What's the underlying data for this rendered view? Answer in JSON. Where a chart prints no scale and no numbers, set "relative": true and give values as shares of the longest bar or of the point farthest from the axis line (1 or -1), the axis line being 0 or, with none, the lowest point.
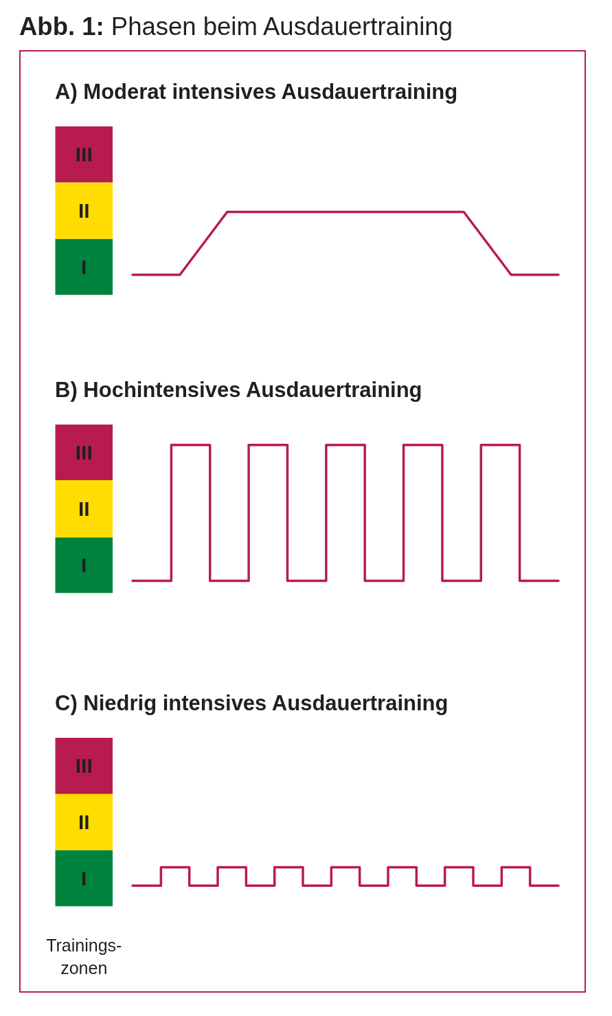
{
  "chart_data": [
    {
      "type": "line",
      "relative": true,
      "title": "A) Moderat intensives Ausdauertraining",
      "annotations": [
        "Abb. 1: Phasen beim Ausdauertraining"
      ],
      "categories": [
        null,
        null,
        null,
        null,
        null,
        null,
        null,
        null,
        null,
        null,
        null,
        null
      ],
      "series": [
        {
          "color": "#b81c4f",
          "values": [
            null,
            null,
            0,
            0,
            1,
            1,
            1,
            1,
            1,
            1,
            0,
            0
          ]
        }
      ],
      "bands": [
        {
          "axis": "y",
          "from": -0.32,
          "to": 0.57,
          "label": "I",
          "color": "#00843d"
        },
        {
          "axis": "y",
          "from": 0.57,
          "to": 1.47,
          "label": "II",
          "color": "#ffdd00"
        },
        {
          "axis": "y",
          "from": 1.47,
          "to": 2.36,
          "label": "III",
          "color": "#b81c4f"
        }
      ]
    },
    {
      "type": "step",
      "relative": true,
      "title": "B) Hochintensives Ausdauertraining",
      "categories": [
        null,
        null,
        null,
        null,
        null,
        null,
        null,
        null,
        null,
        null,
        null,
        null,
        null,
        null,
        null
      ],
      "series": [
        {
          "color": "#b81c4f",
          "values": [
            null,
            null,
            null,
            0,
            1,
            0,
            1,
            0,
            1,
            0,
            1,
            0,
            1,
            0,
            0
          ]
        }
      ],
      "bands": [
        {
          "axis": "y",
          "from": -0.09,
          "to": 0.32,
          "label": "I",
          "color": "#00843d"
        },
        {
          "axis": "y",
          "from": 0.32,
          "to": 0.74,
          "label": "II",
          "color": "#ffdd00"
        },
        {
          "axis": "y",
          "from": 0.74,
          "to": 1.15,
          "label": "III",
          "color": "#b81c4f"
        }
      ]
    },
    {
      "type": "step",
      "relative": true,
      "title": "C) Niedrig intensives Ausdauertraining",
      "annotations": [
        "Trainings-zonen"
      ],
      "categories": [
        null,
        null,
        null,
        null,
        null,
        null,
        null,
        null,
        null,
        null,
        null,
        null,
        null,
        null,
        null,
        null,
        null,
        null,
        null
      ],
      "series": [
        {
          "color": "#b81c4f",
          "values": [
            null,
            null,
            null,
            0,
            1,
            0,
            1,
            0,
            1,
            0,
            1,
            0,
            1,
            0,
            1,
            0,
            1,
            0,
            0
          ]
        }
      ],
      "bands": [
        {
          "axis": "y",
          "from": -1.13,
          "to": 1.94,
          "label": "I",
          "color": "#00843d"
        },
        {
          "axis": "y",
          "from": 1.94,
          "to": 5.0,
          "label": "II",
          "color": "#ffdd00"
        },
        {
          "axis": "y",
          "from": 5.0,
          "to": 8.07,
          "label": "III",
          "color": "#b81c4f"
        }
      ]
    }
  ]
}
